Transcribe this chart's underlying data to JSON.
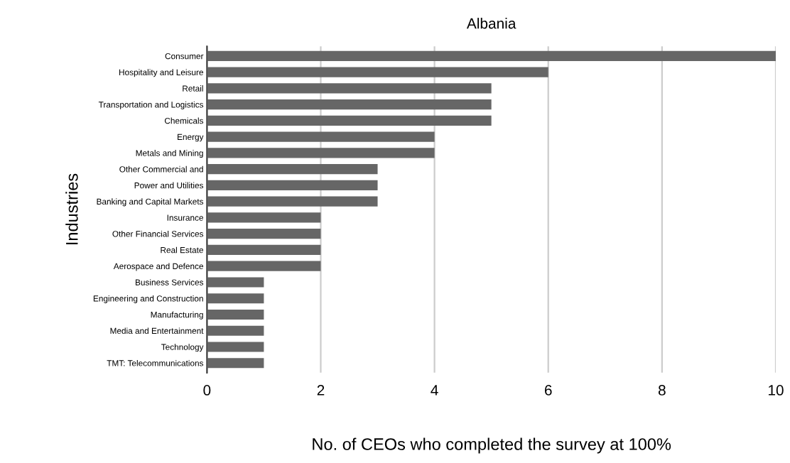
{
  "chart_data": {
    "type": "bar",
    "orientation": "horizontal",
    "title": "Albania",
    "xlabel": "No. of CEOs who completed the survey at 100%",
    "ylabel": "Industries",
    "categories": [
      "Consumer",
      "Hospitality and Leisure",
      "Retail",
      "Transportation and Logistics",
      "Chemicals",
      "Energy",
      "Metals and Mining",
      "Other Commercial and",
      "Power and Utilities",
      "Banking and Capital Markets",
      "Insurance",
      "Other Financial Services",
      "Real Estate",
      "Aerospace and Defence",
      "Business Services",
      "Engineering and Construction",
      "Manufacturing",
      "Media and Entertainment",
      "Technology",
      "TMT: Telecommunications"
    ],
    "values": [
      10,
      6,
      5,
      5,
      5,
      4,
      4,
      3,
      3,
      3,
      2,
      2,
      2,
      2,
      1,
      1,
      1,
      1,
      1,
      1
    ],
    "color": "#666666",
    "xlim": [
      0,
      10
    ],
    "xticks": [
      0,
      2,
      4,
      6,
      8,
      10
    ],
    "grid": "x",
    "legend": false
  }
}
